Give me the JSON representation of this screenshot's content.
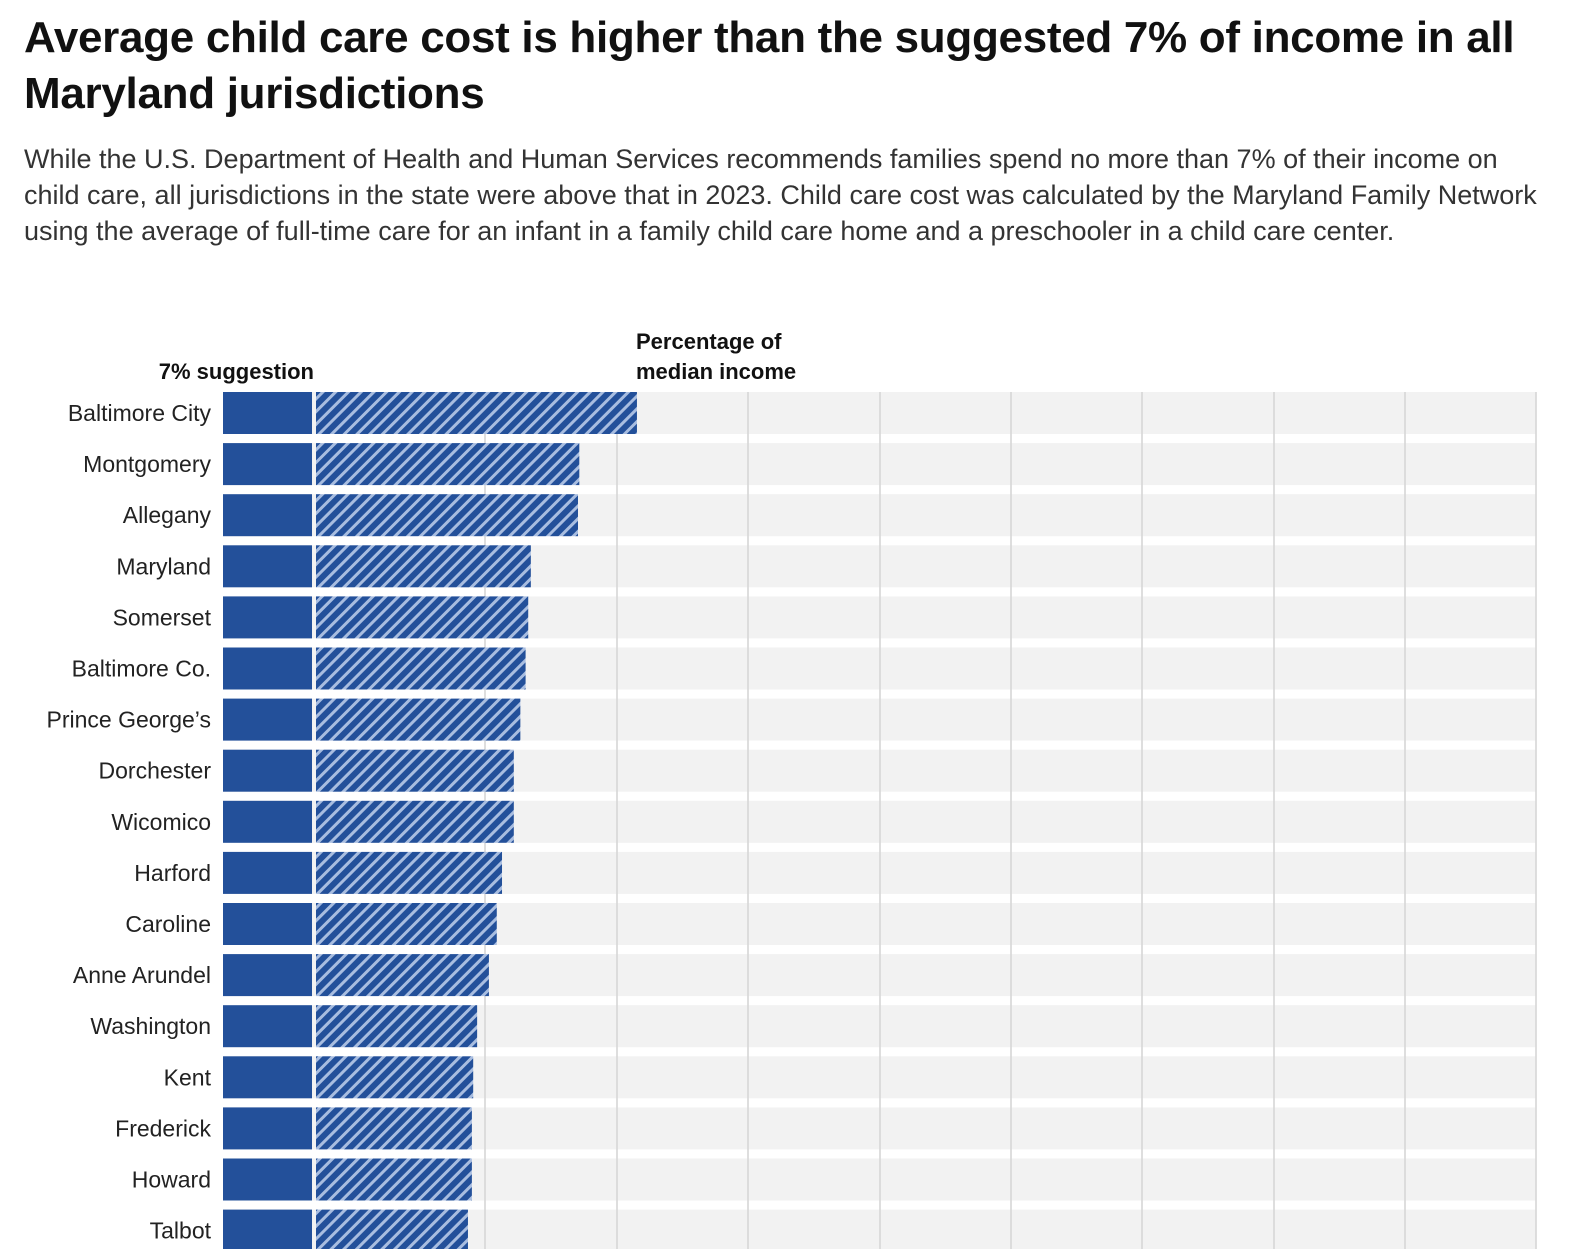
{
  "title": "Average child care cost is higher than the suggested 7% of income in all Maryland jurisdictions",
  "subtitle": "While the U.S. Department of Health and Human Services recommends families spend no more than 7% of their income on child care, all jurisdictions in the state were above that in 2023. Child care cost was calculated by the Maryland Family Network using the average of full-time care for an infant in a family child care home and a preschooler in a child care center.",
  "chart_data": {
    "type": "bar",
    "orientation": "horizontal",
    "column_labels": {
      "suggestion": "7% suggestion",
      "actual": [
        "Percentage of",
        "median income"
      ]
    },
    "suggestion_value": 7,
    "categories": [
      "Baltimore City",
      "Montgomery",
      "Allegany",
      "Maryland",
      "Somerset",
      "Baltimore Co.",
      "Prince George’s",
      "Dorchester",
      "Wicomico",
      "Harford",
      "Caroline",
      "Anne Arundel",
      "Washington",
      "Kent",
      "Frederick",
      "Howard",
      "Talbot"
    ],
    "series": [
      {
        "values": [
          31.5,
          27.1,
          27.0,
          23.4,
          23.2,
          23.0,
          22.6,
          22.1,
          22.1,
          21.2,
          20.8,
          20.2,
          19.3,
          19.0,
          18.9,
          18.9,
          18.6
        ]
      }
    ],
    "xlim": [
      0,
      100
    ],
    "grid": true,
    "colors": {
      "bar": "#23509a",
      "hatch": "#a8bde0",
      "row_background": "#f2f2f2",
      "gridline": "#d4d4d4"
    }
  }
}
